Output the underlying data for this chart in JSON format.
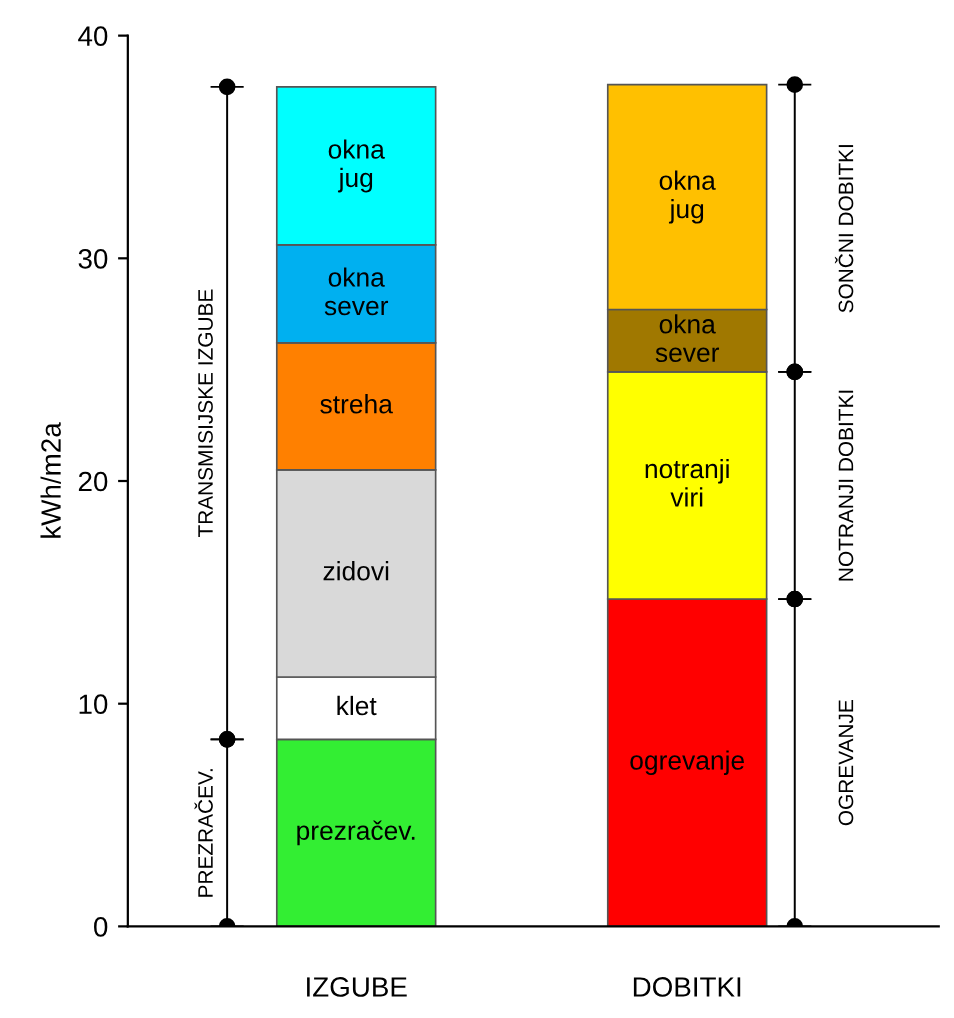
{
  "chart_data": {
    "type": "bar",
    "stacked": true,
    "ylabel": "kWh/m2a",
    "categories": [
      "IZGUBE",
      "DOBITKI"
    ],
    "ylim": [
      0,
      40
    ],
    "yticks": [
      0,
      10,
      20,
      30,
      40
    ],
    "grid": false,
    "series": [
      {
        "name": "prezračev.",
        "color": "#33ee33",
        "values": [
          8.4,
          null
        ]
      },
      {
        "name": "klet",
        "color": "#ffffff",
        "values": [
          2.8,
          null
        ]
      },
      {
        "name": "zidovi",
        "color": "#d9d9d9",
        "values": [
          9.3,
          null
        ]
      },
      {
        "name": "streha",
        "color": "#ff8000",
        "values": [
          5.7,
          null
        ]
      },
      {
        "name": "okna\nsever",
        "color": "#00b0f0",
        "values": [
          4.4,
          null
        ]
      },
      {
        "name": "okna\njug",
        "color": "#00ffff",
        "values": [
          7.1,
          null
        ]
      },
      {
        "name": "ogrevanje",
        "color": "#ff0000",
        "values": [
          null,
          14.7
        ]
      },
      {
        "name": "notranji\nviri",
        "color": "#ffff00",
        "values": [
          null,
          10.2
        ]
      },
      {
        "name": "okna\nsever",
        "color": "#a07800",
        "values": [
          null,
          2.8
        ]
      },
      {
        "name": "okna\njug",
        "color": "#ffc000",
        "values": [
          null,
          10.1
        ]
      }
    ],
    "annotations": [
      "PREZRAČEV.",
      "TRANSMISIJSKE IZGUBE",
      "OGREVANJE",
      "NOTRANJI DOBITKI",
      "SONČNI DOBITKI"
    ]
  }
}
